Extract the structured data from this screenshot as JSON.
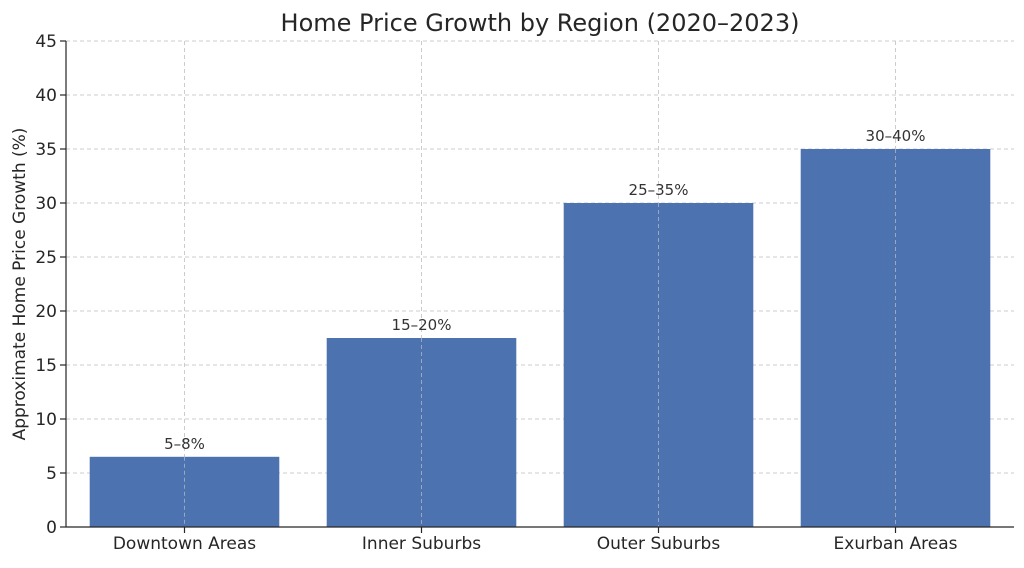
{
  "chart_data": {
    "type": "bar",
    "title": "Home Price Growth by Region (2020–2023)",
    "xlabel": "",
    "ylabel": "Approximate Home Price Growth (%)",
    "categories": [
      "Downtown Areas",
      "Inner Suburbs",
      "Outer Suburbs",
      "Exurban Areas"
    ],
    "values": [
      6.5,
      17.5,
      30,
      35
    ],
    "data_labels": [
      "5–8%",
      "15–20%",
      "25–35%",
      "30–40%"
    ],
    "ylim": [
      0,
      45
    ],
    "yticks": [
      0,
      5,
      10,
      15,
      20,
      25,
      30,
      35,
      40,
      45
    ],
    "grid": true,
    "bar_color": "#4c72b0"
  }
}
